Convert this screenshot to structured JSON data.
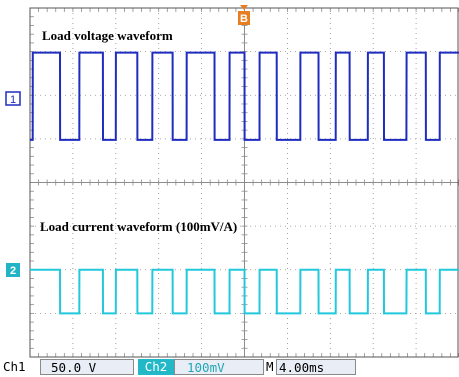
{
  "chart_data": {
    "type": "line",
    "title": "",
    "x": [
      0,
      0.25,
      0.26,
      2.8,
      2.81,
      4.6,
      4.61,
      6.8,
      6.81,
      8.0,
      8.01,
      10.0,
      10.01,
      11.4,
      11.41,
      13.3,
      13.31,
      14.6,
      14.61,
      17.2,
      17.21,
      18.6,
      18.61,
      20.0,
      20.01,
      21.4,
      21.41,
      23.0,
      23.01,
      25.2,
      25.21,
      26.9,
      26.91,
      28.5,
      28.51,
      29.8,
      29.81,
      31.5,
      31.51,
      33.0,
      33.01,
      35.1,
      35.11,
      36.9,
      36.91,
      38.2,
      38.21,
      40.0
    ],
    "series": [
      {
        "name": "Load voltage waveform",
        "channel": "1",
        "values": [
          -50,
          -50,
          50,
          50,
          -50,
          -50,
          50,
          50,
          -50,
          -50,
          50,
          50,
          -50,
          -50,
          50,
          50,
          -50,
          -50,
          50,
          50,
          -50,
          -50,
          50,
          50,
          -50,
          -50,
          50,
          50,
          -50,
          -50,
          50,
          50,
          -50,
          -50,
          50,
          50,
          -50,
          -50,
          50,
          50,
          -50,
          -50,
          50,
          50,
          -50,
          -50,
          50,
          50
        ],
        "unit": "V",
        "color": "#1f2dbf"
      },
      {
        "name": "Load current waveform (100mV/A)",
        "channel": "2",
        "values": [
          0.5,
          0.5,
          0.5,
          0.5,
          -0.5,
          -0.5,
          0.5,
          0.5,
          -0.5,
          -0.5,
          0.5,
          0.5,
          -0.5,
          -0.5,
          0.5,
          0.5,
          -0.5,
          -0.5,
          0.5,
          0.5,
          -0.5,
          -0.5,
          0.5,
          0.5,
          -0.5,
          -0.5,
          0.5,
          0.5,
          -0.5,
          -0.5,
          0.5,
          0.5,
          -0.5,
          -0.5,
          0.5,
          0.5,
          -0.5,
          -0.5,
          0.5,
          0.5,
          -0.5,
          -0.5,
          0.5,
          0.5,
          -0.5,
          -0.5,
          0.5,
          0.5
        ],
        "unit": "A",
        "color": "#22c8dc"
      }
    ],
    "annotations": [
      "Load voltage waveform",
      "Load current waveform (100mV/A)"
    ],
    "grid": true,
    "divisions": {
      "horizontal": 10,
      "vertical": 8
    },
    "xlim": [
      0,
      40
    ],
    "ch1_ylim": [
      -200,
      200
    ],
    "ch2_ylim": [
      -4,
      4
    ],
    "trigger_marker": "B",
    "ch1_marker": "1",
    "ch2_marker": "2"
  },
  "status": {
    "ch1_label": "Ch1",
    "ch1_scale": "50.0 V",
    "ch2_label": "Ch2",
    "ch2_scale": "100mV",
    "time_prefix": "M",
    "time_scale": "4.00ms"
  },
  "colors": {
    "ch1": "#1f2dbf",
    "ch2": "#22c8dc",
    "trigger": "#e67e22",
    "grid": "#8c8c8c",
    "status_bg": "#e9eef6"
  }
}
